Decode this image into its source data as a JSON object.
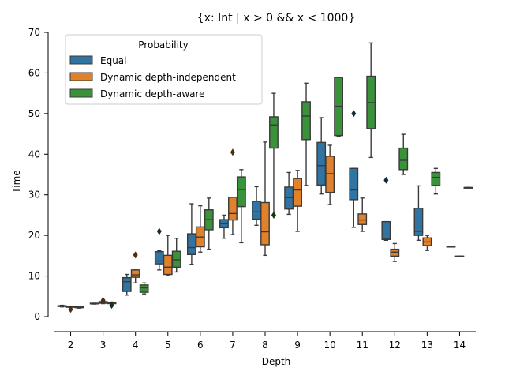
{
  "chart_data": {
    "type": "box",
    "title": "{x: Int | x > 0 && x < 1000}",
    "xlabel": "Depth",
    "ylabel": "Time",
    "ylim": [
      0,
      70
    ],
    "yticks": [
      0,
      10,
      20,
      30,
      40,
      50,
      60,
      70
    ],
    "categories": [
      "2",
      "3",
      "4",
      "5",
      "6",
      "7",
      "8",
      "9",
      "10",
      "11",
      "12",
      "13",
      "14"
    ],
    "legend": {
      "title": "Probability",
      "placement": "upper-left"
    },
    "series": [
      {
        "name": "Equal",
        "color": "#3274a1",
        "boxes": [
          {
            "category": "2",
            "whislo": 2.4,
            "q1": 2.5,
            "med": 2.6,
            "q3": 2.7,
            "whishi": 2.8,
            "fliers": []
          },
          {
            "category": "3",
            "whislo": 3.1,
            "q1": 3.2,
            "med": 3.2,
            "q3": 3.3,
            "whishi": 3.3,
            "fliers": []
          },
          {
            "category": "4",
            "whislo": 5.3,
            "q1": 6.2,
            "med": 8.6,
            "q3": 9.6,
            "whishi": 10.4,
            "fliers": []
          },
          {
            "category": "5",
            "whislo": 11.5,
            "q1": 13.0,
            "med": 13.7,
            "q3": 16.0,
            "whishi": 16.2,
            "fliers": [
              21.0
            ]
          },
          {
            "category": "6",
            "whislo": 12.9,
            "q1": 15.3,
            "med": 17.0,
            "q3": 20.4,
            "whishi": 27.8,
            "fliers": []
          },
          {
            "category": "7",
            "whislo": 19.3,
            "q1": 21.9,
            "med": 22.9,
            "q3": 23.9,
            "whishi": 25.0,
            "fliers": []
          },
          {
            "category": "8",
            "whislo": 22.5,
            "q1": 24.0,
            "med": 25.8,
            "q3": 28.4,
            "whishi": 32.0,
            "fliers": []
          },
          {
            "category": "9",
            "whislo": 25.2,
            "q1": 26.5,
            "med": 29.3,
            "q3": 31.9,
            "whishi": 35.5,
            "fliers": []
          },
          {
            "category": "10",
            "whislo": 30.2,
            "q1": 32.4,
            "med": 37.2,
            "q3": 42.9,
            "whishi": 49.0,
            "fliers": []
          },
          {
            "category": "11",
            "whislo": 22.0,
            "q1": 28.8,
            "med": 31.2,
            "q3": 36.5,
            "whishi": 36.5,
            "fliers": [
              50.0
            ]
          },
          {
            "category": "12",
            "whislo": 18.8,
            "q1": 19.0,
            "med": 19.3,
            "q3": 23.4,
            "whishi": 23.4,
            "fliers": [
              33.6
            ]
          },
          {
            "category": "13",
            "whislo": 18.8,
            "q1": 20.0,
            "med": 21.0,
            "q3": 26.7,
            "whishi": 32.2,
            "fliers": []
          },
          {
            "category": "14",
            "whislo": 17.3,
            "q1": 17.3,
            "med": 17.3,
            "q3": 17.3,
            "whishi": 17.3,
            "fliers": []
          }
        ]
      },
      {
        "name": "Dynamic depth-independent",
        "color": "#e1812c",
        "boxes": [
          {
            "category": "2",
            "whislo": 1.8,
            "q1": 2.3,
            "med": 2.4,
            "q3": 2.5,
            "whishi": 2.6,
            "fliers": [
              1.8
            ]
          },
          {
            "category": "3",
            "whislo": 3.2,
            "q1": 3.3,
            "med": 3.5,
            "q3": 3.7,
            "whishi": 3.8,
            "fliers": [
              4.0
            ]
          },
          {
            "category": "4",
            "whislo": 8.3,
            "q1": 9.7,
            "med": 10.3,
            "q3": 11.5,
            "whishi": 11.5,
            "fliers": [
              15.2
            ]
          },
          {
            "category": "5",
            "whislo": 10.1,
            "q1": 10.4,
            "med": 12.2,
            "q3": 15.1,
            "whishi": 20.0,
            "fliers": []
          },
          {
            "category": "6",
            "whislo": 15.9,
            "q1": 17.2,
            "med": 19.6,
            "q3": 22.1,
            "whishi": 27.3,
            "fliers": []
          },
          {
            "category": "7",
            "whislo": 20.2,
            "q1": 23.8,
            "med": 25.4,
            "q3": 29.4,
            "whishi": 29.4,
            "fliers": [
              40.5
            ]
          },
          {
            "category": "8",
            "whislo": 15.1,
            "q1": 17.7,
            "med": 20.9,
            "q3": 28.1,
            "whishi": 43.0,
            "fliers": []
          },
          {
            "category": "9",
            "whislo": 21.0,
            "q1": 27.2,
            "med": 31.2,
            "q3": 34.0,
            "whishi": 36.0,
            "fliers": []
          },
          {
            "category": "10",
            "whislo": 27.6,
            "q1": 30.6,
            "med": 35.2,
            "q3": 39.5,
            "whishi": 42.2,
            "fliers": []
          },
          {
            "category": "11",
            "whislo": 21.0,
            "q1": 22.7,
            "med": 23.8,
            "q3": 25.3,
            "whishi": 29.2,
            "fliers": []
          },
          {
            "category": "12",
            "whislo": 13.6,
            "q1": 14.9,
            "med": 15.9,
            "q3": 16.6,
            "whishi": 18.0,
            "fliers": []
          },
          {
            "category": "13",
            "whislo": 16.3,
            "q1": 17.5,
            "med": 18.4,
            "q3": 19.4,
            "whishi": 20.0,
            "fliers": []
          },
          {
            "category": "14",
            "whislo": 14.9,
            "q1": 14.9,
            "med": 14.9,
            "q3": 14.9,
            "whishi": 14.9,
            "fliers": []
          }
        ]
      },
      {
        "name": "Dynamic depth-aware",
        "color": "#3a923a",
        "boxes": [
          {
            "category": "2",
            "whislo": 2.1,
            "q1": 2.2,
            "med": 2.3,
            "q3": 2.4,
            "whishi": 2.5,
            "fliers": []
          },
          {
            "category": "3",
            "whislo": 2.8,
            "q1": 3.2,
            "med": 3.3,
            "q3": 3.5,
            "whishi": 3.6,
            "fliers": [
              2.8
            ]
          },
          {
            "category": "4",
            "whislo": 5.6,
            "q1": 6.0,
            "med": 7.1,
            "q3": 7.8,
            "whishi": 8.3,
            "fliers": []
          },
          {
            "category": "5",
            "whislo": 11.0,
            "q1": 12.2,
            "med": 14.0,
            "q3": 16.1,
            "whishi": 19.3,
            "fliers": []
          },
          {
            "category": "6",
            "whislo": 16.6,
            "q1": 21.4,
            "med": 23.9,
            "q3": 26.3,
            "whishi": 29.2,
            "fliers": []
          },
          {
            "category": "7",
            "whislo": 18.2,
            "q1": 27.1,
            "med": 31.3,
            "q3": 34.4,
            "whishi": 36.2,
            "fliers": []
          },
          {
            "category": "8",
            "whislo": 25.0,
            "q1": 41.5,
            "med": 47.2,
            "q3": 49.2,
            "whishi": 55.0,
            "fliers": [
              25.0
            ]
          },
          {
            "category": "9",
            "whislo": 32.3,
            "q1": 43.6,
            "med": 49.4,
            "q3": 52.9,
            "whishi": 57.5,
            "fliers": []
          },
          {
            "category": "10",
            "whislo": 44.4,
            "q1": 44.6,
            "med": 51.8,
            "q3": 58.9,
            "whishi": 58.9,
            "fliers": []
          },
          {
            "category": "11",
            "whislo": 39.2,
            "q1": 46.3,
            "med": 52.7,
            "q3": 59.2,
            "whishi": 67.4,
            "fliers": []
          },
          {
            "category": "12",
            "whislo": 35.0,
            "q1": 36.2,
            "med": 38.5,
            "q3": 41.5,
            "whishi": 44.9,
            "fliers": []
          },
          {
            "category": "13",
            "whislo": 30.2,
            "q1": 32.3,
            "med": 34.3,
            "q3": 35.5,
            "whishi": 36.5,
            "fliers": []
          },
          {
            "category": "14",
            "whislo": 31.8,
            "q1": 31.8,
            "med": 31.8,
            "q3": 31.8,
            "whishi": 31.8,
            "fliers": []
          }
        ]
      }
    ]
  }
}
